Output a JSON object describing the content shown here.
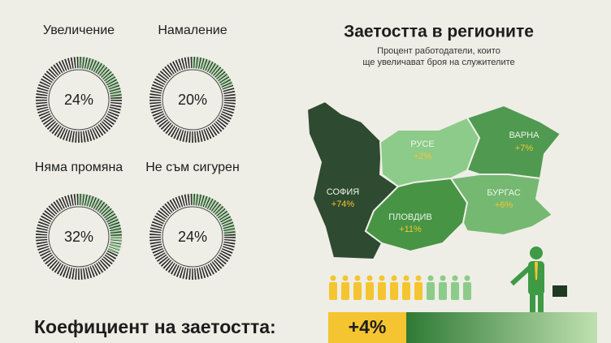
{
  "gauges": [
    {
      "label": "Увеличение",
      "value": 24,
      "value_label": "24%"
    },
    {
      "label": "Намаление",
      "value": 20,
      "value_label": "20%"
    },
    {
      "label": "Няма промяна",
      "value": 32,
      "value_label": "32%"
    },
    {
      "label": "Не съм сигурен",
      "value": 24,
      "value_label": "24%"
    }
  ],
  "map": {
    "title": "Заетостта в регионите",
    "subtitle_lines": [
      "Процент работодатели, които",
      "ще увеличават броя на служителите"
    ],
    "regions": [
      {
        "name": "СОФИЯ",
        "label": "+74%"
      },
      {
        "name": "РУСЕ",
        "label": "+2%"
      },
      {
        "name": "ВАРНА",
        "label": "+7%"
      },
      {
        "name": "ПЛОВДИВ",
        "label": "+11%"
      },
      {
        "name": "БУРГАС",
        "label": "+6%"
      }
    ]
  },
  "footer": {
    "label": "Коефициент на заетостта:",
    "value_label": "+4%"
  }
}
